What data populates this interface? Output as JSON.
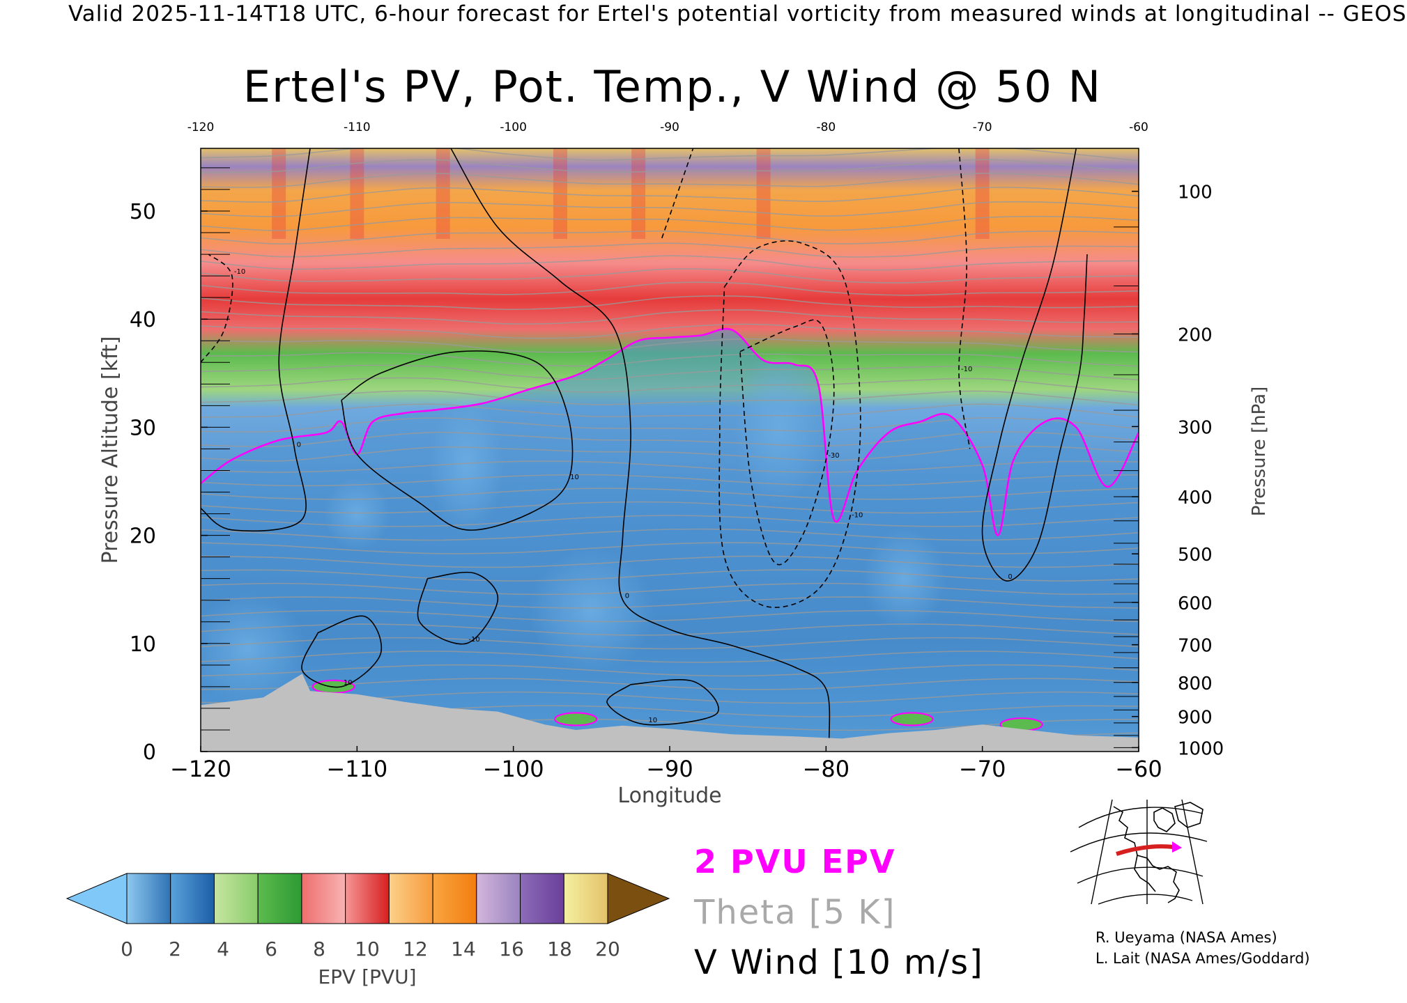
{
  "header": {
    "valid_line": "Valid 2025-11-14T18 UTC, 6-hour forecast for Ertel's potential vorticity from measured winds at longitudinal -- GEOS"
  },
  "chart_data": {
    "type": "heatmap",
    "title": "Ertel's PV, Pot. Temp., V Wind @ 50 N",
    "xlabel": "Longitude",
    "ylabel": "Pressure Altitude [kft]",
    "y2label": "Pressure [hPa]",
    "xlim": [
      -120,
      -60
    ],
    "ylim": [
      0,
      55.8
    ],
    "x_ticks_bottom": [
      "−120",
      "−110",
      "−100",
      "−90",
      "−80",
      "−70",
      "−60"
    ],
    "x_ticks_top": [
      "-120",
      "-110",
      "-100",
      "-90",
      "-80",
      "-70",
      "-60"
    ],
    "y_ticks": [
      {
        "value": 0,
        "label": "0"
      },
      {
        "value": 10,
        "label": "10"
      },
      {
        "value": 20,
        "label": "20"
      },
      {
        "value": 30,
        "label": "30"
      },
      {
        "value": 40,
        "label": "40"
      },
      {
        "value": 50,
        "label": "50"
      }
    ],
    "pressure_ticks": [
      {
        "value": 100,
        "label": "100"
      },
      {
        "value": 200,
        "label": "200"
      },
      {
        "value": 300,
        "label": "300"
      },
      {
        "value": 400,
        "label": "400"
      },
      {
        "value": 500,
        "label": "500"
      },
      {
        "value": 600,
        "label": "600"
      },
      {
        "value": 700,
        "label": "700"
      },
      {
        "value": 800,
        "label": "800"
      },
      {
        "value": 900,
        "label": "900"
      },
      {
        "value": 1000,
        "label": "1000"
      }
    ],
    "colorbar": {
      "label": "EPV [PVU]",
      "ticks": [
        "0",
        "2",
        "4",
        "6",
        "8",
        "10",
        "12",
        "14",
        "16",
        "18",
        "20"
      ],
      "under_color": "#7fc8f8",
      "over_color": "#7a4f10",
      "band_colors": [
        [
          "#8ec8ef",
          "#2f73b5"
        ],
        [
          "#5aa2dc",
          "#1d5ea6"
        ],
        [
          "#c7e5a0",
          "#88cc6a"
        ],
        [
          "#5cbb4e",
          "#2d9a33"
        ],
        [
          "#ee6e6e",
          "#f8b3b3"
        ],
        [
          "#f59595",
          "#d61f1f"
        ],
        [
          "#fcd08a",
          "#f79a3c"
        ],
        [
          "#f9a542",
          "#f27d0f"
        ],
        [
          "#d2b6dc",
          "#9a84c0"
        ],
        [
          "#8c6cb8",
          "#6a3f9a"
        ],
        [
          "#f4f0a0",
          "#e4c16a"
        ]
      ]
    },
    "tropopause_2pvu": [
      [
        -120,
        24.8
      ],
      [
        -118,
        27.0
      ],
      [
        -115,
        28.8
      ],
      [
        -112,
        29.5
      ],
      [
        -111,
        30.5
      ],
      [
        -110,
        27.5
      ],
      [
        -109,
        30.5
      ],
      [
        -107,
        31.3
      ],
      [
        -105,
        31.6
      ],
      [
        -102,
        32.2
      ],
      [
        -99,
        33.5
      ],
      [
        -96,
        34.8
      ],
      [
        -94,
        36.3
      ],
      [
        -92,
        38.0
      ],
      [
        -90,
        38.3
      ],
      [
        -88,
        38.5
      ],
      [
        -86,
        39.0
      ],
      [
        -84,
        36.2
      ],
      [
        -82,
        35.8
      ],
      [
        -80.5,
        34.0
      ],
      [
        -79.5,
        21.5
      ],
      [
        -78,
        26.0
      ],
      [
        -76,
        29.5
      ],
      [
        -74,
        30.5
      ],
      [
        -72,
        31.0
      ],
      [
        -70,
        26.5
      ],
      [
        -69,
        20.0
      ],
      [
        -68,
        27.0
      ],
      [
        -66,
        30.5
      ],
      [
        -64,
        30.0
      ],
      [
        -62,
        24.5
      ],
      [
        -60,
        29.5
      ]
    ],
    "vwind_contours": [
      {
        "label": "0",
        "dashed": false,
        "points": [
          [
            -104,
            55.8
          ],
          [
            -101,
            48.5
          ],
          [
            -97,
            43.5
          ],
          [
            -93.5,
            39.0
          ],
          [
            -92.5,
            30.0
          ],
          [
            -93,
            20.0
          ],
          [
            -93,
            14.0
          ],
          [
            -90,
            11.3
          ],
          [
            -86,
            9.8
          ],
          [
            -82,
            7.8
          ],
          [
            -80,
            5.8
          ],
          [
            -79.8,
            1.0
          ]
        ]
      },
      {
        "label": "0",
        "dashed": false,
        "points": [
          [
            -113,
            55.8
          ],
          [
            -114,
            46.0
          ],
          [
            -115,
            36.0
          ],
          [
            -114,
            28.0
          ],
          [
            -113.5,
            21.5
          ],
          [
            -118,
            20.5
          ],
          [
            -120,
            22.5
          ]
        ]
      },
      {
        "label": "0",
        "dashed": false,
        "points": [
          [
            -64,
            55.8
          ],
          [
            -65.5,
            45.0
          ],
          [
            -67.5,
            36.0
          ],
          [
            -69,
            28.0
          ],
          [
            -70,
            20.0
          ],
          [
            -68.5,
            15.8
          ],
          [
            -66.5,
            19.0
          ],
          [
            -65,
            28.0
          ],
          [
            -63.8,
            35.0
          ],
          [
            -63.5,
            40.0
          ],
          [
            -63.3,
            46.0
          ]
        ]
      },
      {
        "label": "10",
        "dashed": false,
        "points": [
          [
            -111,
            32.5
          ],
          [
            -108.5,
            35.0
          ],
          [
            -103.5,
            37.0
          ],
          [
            -98.5,
            36.0
          ],
          [
            -96.5,
            31.0
          ],
          [
            -96.5,
            25.0
          ],
          [
            -99,
            22.0
          ],
          [
            -103,
            20.5
          ],
          [
            -106,
            23.0
          ],
          [
            -110,
            27.5
          ],
          [
            -111,
            32.5
          ]
        ]
      },
      {
        "label": "-10",
        "dashed": true,
        "points": [
          [
            -90.5,
            47.5
          ],
          [
            -88.5,
            55.8
          ]
        ]
      },
      {
        "label": "-10",
        "dashed": true,
        "points": [
          [
            -86.5,
            43.0
          ],
          [
            -84.5,
            46.5
          ],
          [
            -81.5,
            47.0
          ],
          [
            -78.8,
            43.5
          ],
          [
            -77.8,
            31.5
          ],
          [
            -78.5,
            21.5
          ],
          [
            -80.5,
            15.0
          ],
          [
            -84.0,
            13.5
          ],
          [
            -86.5,
            18.0
          ],
          [
            -86.8,
            30.0
          ],
          [
            -86.5,
            43.0
          ]
        ]
      },
      {
        "label": "-30",
        "dashed": true,
        "points": [
          [
            -85.5,
            37.0
          ],
          [
            -82,
            39.3
          ],
          [
            -80.3,
            39.5
          ],
          [
            -79.5,
            34.0
          ],
          [
            -80.0,
            27.0
          ],
          [
            -81.5,
            20.0
          ],
          [
            -83.3,
            17.5
          ],
          [
            -84.8,
            25.0
          ],
          [
            -85.5,
            37.0
          ]
        ]
      },
      {
        "label": "-10",
        "dashed": true,
        "points": [
          [
            -71.5,
            55.8
          ],
          [
            -71,
            45.0
          ],
          [
            -71.5,
            35.0
          ],
          [
            -70.8,
            28.0
          ]
        ]
      },
      {
        "label": "-10",
        "dashed": true,
        "points": [
          [
            -120,
            36.0
          ],
          [
            -118.5,
            39.0
          ],
          [
            -118,
            44.0
          ],
          [
            -119.5,
            46.0
          ]
        ]
      },
      {
        "label": "10",
        "dashed": false,
        "points": [
          [
            -112.5,
            11.0
          ],
          [
            -109.5,
            12.5
          ],
          [
            -108.5,
            9.0
          ],
          [
            -111,
            6.0
          ],
          [
            -113.5,
            7.5
          ],
          [
            -112.5,
            11.0
          ]
        ]
      },
      {
        "label": "-10",
        "dashed": false,
        "points": [
          [
            -105.5,
            16.0
          ],
          [
            -102.5,
            16.5
          ],
          [
            -101.0,
            14.0
          ],
          [
            -103.0,
            10.0
          ],
          [
            -106.0,
            12.0
          ],
          [
            -105.5,
            16.0
          ]
        ]
      },
      {
        "label": "10",
        "dashed": false,
        "points": [
          [
            -92.5,
            6.2
          ],
          [
            -88.5,
            6.5
          ],
          [
            -87.0,
            3.5
          ],
          [
            -91.5,
            2.5
          ],
          [
            -94.0,
            4.5
          ],
          [
            -92.5,
            6.2
          ]
        ]
      }
    ],
    "ground_profile": [
      [
        -120,
        4.3
      ],
      [
        -116,
        5.0
      ],
      [
        -113.5,
        7.2
      ],
      [
        -113,
        5.6
      ],
      [
        -110,
        5.3
      ],
      [
        -107,
        4.6
      ],
      [
        -104,
        4.0
      ],
      [
        -101,
        3.7
      ],
      [
        -98,
        2.5
      ],
      [
        -96,
        2.0
      ],
      [
        -93,
        2.4
      ],
      [
        -90,
        2.1
      ],
      [
        -86,
        1.6
      ],
      [
        -82,
        1.4
      ],
      [
        -79,
        1.2
      ],
      [
        -76,
        1.7
      ],
      [
        -73,
        2.0
      ],
      [
        -70,
        2.5
      ],
      [
        -67,
        2.0
      ],
      [
        -64,
        1.5
      ],
      [
        -60,
        1.3
      ]
    ],
    "low_pv_pockets": [
      [
        -103,
        26.5,
        18,
        50
      ],
      [
        -95,
        13.0,
        30,
        45
      ],
      [
        -83,
        30.0,
        22,
        55
      ],
      [
        -117,
        9.5,
        28,
        40
      ],
      [
        -75,
        16.0,
        20,
        36
      ],
      [
        -110,
        22.0,
        16,
        26
      ]
    ],
    "high_pv_spots": [
      [
        -111.5,
        6.0
      ],
      [
        -96,
        3.0
      ],
      [
        -67.5,
        2.5
      ],
      [
        -74.5,
        3.0
      ]
    ]
  },
  "legend": {
    "pvu_label": "2 PVU EPV",
    "theta_label": "Theta [5 K]",
    "vwind_label": "V Wind [10 m/s]",
    "colors": {
      "pvu": "#ff00ff",
      "theta": "#a9a9a9",
      "vwind": "#000000",
      "ground": "#c0c0c0"
    }
  },
  "credits": {
    "line1": "R. Ueyama (NASA Ames)",
    "line2": "L. Lait (NASA Ames/Goddard)"
  }
}
